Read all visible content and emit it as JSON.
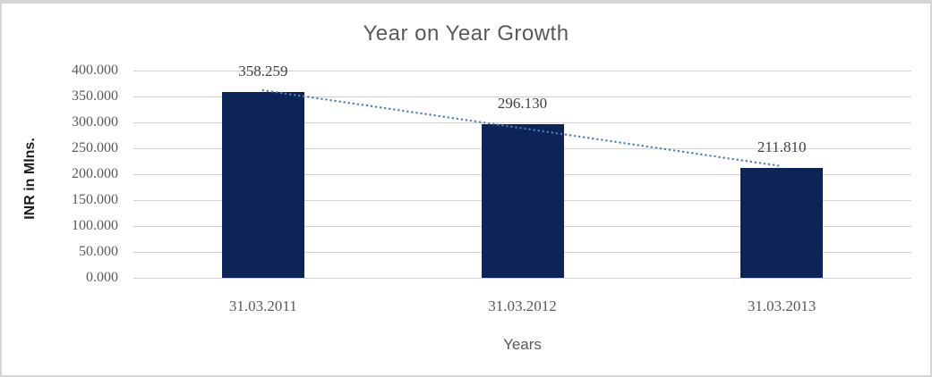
{
  "chart_data": {
    "type": "bar",
    "title": "Year on Year Growth",
    "xlabel": "Years",
    "ylabel": "INR in Mlns.",
    "categories": [
      "31.03.2011",
      "31.03.2012",
      "31.03.2013"
    ],
    "values": [
      358.259,
      296.13,
      211.81
    ],
    "data_labels": [
      "358.259",
      "296.130",
      "211.810"
    ],
    "ylim": [
      0,
      400
    ],
    "ytick_step": 50,
    "ytick_labels_top_to_bottom": [
      "400.000",
      "350.000",
      "300.000",
      "250.000",
      "200.000",
      "150.000",
      "100.000",
      "50.000",
      "0.000"
    ],
    "grid": "horizontal",
    "legend": "none",
    "colors": {
      "bar": "#0d2458",
      "trendline": "#4a7ebc",
      "gridline": "#d2d2d2",
      "title_text": "#595959",
      "tick_text": "#595959",
      "data_label_text": "#404040",
      "frame_border": "#d5d5d5"
    },
    "trendline": {
      "type": "linear",
      "style": "dotted",
      "start_value": 361.9,
      "end_value": 215.5
    }
  }
}
